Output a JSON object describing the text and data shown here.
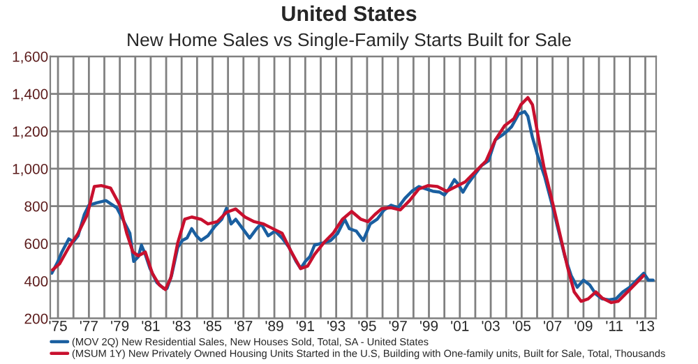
{
  "chart_data": {
    "type": "line",
    "title": "United States",
    "subtitle": "New Home Sales vs Single-Family Starts Built for Sale",
    "xlim": [
      1974.5,
      2013.7
    ],
    "xticks": [
      {
        "value": 1975,
        "label": "'75"
      },
      {
        "value": 1976,
        "label": null
      },
      {
        "value": 1977,
        "label": "'77"
      },
      {
        "value": 1978,
        "label": null
      },
      {
        "value": 1979,
        "label": "'79"
      },
      {
        "value": 1980,
        "label": null
      },
      {
        "value": 1981,
        "label": "'81"
      },
      {
        "value": 1982,
        "label": null
      },
      {
        "value": 1983,
        "label": "'83"
      },
      {
        "value": 1984,
        "label": null
      },
      {
        "value": 1985,
        "label": "'85"
      },
      {
        "value": 1986,
        "label": null
      },
      {
        "value": 1987,
        "label": "'87"
      },
      {
        "value": 1988,
        "label": null
      },
      {
        "value": 1989,
        "label": "'89"
      },
      {
        "value": 1990,
        "label": null
      },
      {
        "value": 1991,
        "label": "'91"
      },
      {
        "value": 1992,
        "label": null
      },
      {
        "value": 1993,
        "label": "'93"
      },
      {
        "value": 1994,
        "label": null
      },
      {
        "value": 1995,
        "label": "'95"
      },
      {
        "value": 1996,
        "label": null
      },
      {
        "value": 1997,
        "label": "'97"
      },
      {
        "value": 1998,
        "label": null
      },
      {
        "value": 1999,
        "label": "'99"
      },
      {
        "value": 2000,
        "label": null
      },
      {
        "value": 2001,
        "label": "'01"
      },
      {
        "value": 2002,
        "label": null
      },
      {
        "value": 2003,
        "label": "'03"
      },
      {
        "value": 2004,
        "label": null
      },
      {
        "value": 2005,
        "label": "'05"
      },
      {
        "value": 2006,
        "label": null
      },
      {
        "value": 2007,
        "label": "'07"
      },
      {
        "value": 2008,
        "label": null
      },
      {
        "value": 2009,
        "label": "'09"
      },
      {
        "value": 2010,
        "label": null
      },
      {
        "value": 2011,
        "label": "'11"
      },
      {
        "value": 2012,
        "label": null
      },
      {
        "value": 2013,
        "label": "'13"
      }
    ],
    "ylim": [
      200,
      1600
    ],
    "yticks": [
      {
        "value": 200,
        "label": "200"
      },
      {
        "value": 400,
        "label": "400"
      },
      {
        "value": 600,
        "label": "600"
      },
      {
        "value": 800,
        "label": "800"
      },
      {
        "value": 1000,
        "label": "1,000"
      },
      {
        "value": 1200,
        "label": "1,200"
      },
      {
        "value": 1400,
        "label": "1,400"
      },
      {
        "value": 1600,
        "label": "1,600"
      }
    ],
    "grid": true,
    "legend": "bottom",
    "marker": "none",
    "line_style": "solid",
    "series": [
      {
        "name": "(MOV 2Q) New Residential Sales, New Houses Sold, Total, SA - United States",
        "color": "#1a5fa0",
        "x": [
          1974.6,
          1975.0,
          1975.25,
          1975.7,
          1976.0,
          1976.3,
          1976.7,
          1977.0,
          1977.5,
          1978.1,
          1978.8,
          1979.35,
          1979.65,
          1979.9,
          1980.2,
          1980.4,
          1980.65,
          1980.95,
          1981.4,
          1981.85,
          1982.05,
          1982.35,
          1982.75,
          1983.05,
          1983.35,
          1983.65,
          1983.95,
          1984.25,
          1984.7,
          1985.15,
          1985.6,
          1985.9,
          1986.2,
          1986.5,
          1986.95,
          1987.4,
          1987.85,
          1988.15,
          1988.6,
          1989.05,
          1989.5,
          1989.95,
          1990.4,
          1990.7,
          1991.0,
          1991.3,
          1991.6,
          1992.2,
          1992.65,
          1993.1,
          1993.55,
          1993.85,
          1994.3,
          1994.75,
          1995.2,
          1995.65,
          1996.1,
          1996.55,
          1997.0,
          1997.45,
          1997.9,
          1998.35,
          1998.8,
          1999.25,
          1999.7,
          2000.0,
          2000.3,
          2000.65,
          2000.9,
          2001.2,
          2001.5,
          2001.95,
          2002.4,
          2002.85,
          2003.3,
          2003.75,
          2004.05,
          2004.35,
          2004.8,
          2005.2,
          2005.4,
          2005.7,
          2006.0,
          2006.5,
          2006.9,
          2007.35,
          2007.8,
          2008.2,
          2008.6,
          2009.0,
          2009.4,
          2009.8,
          2010.2,
          2010.65,
          2011.1,
          2011.55,
          2012.0,
          2012.45,
          2012.9,
          2013.2,
          2013.5
        ],
        "values": [
          442,
          505,
          555,
          625,
          610,
          642,
          755,
          805,
          818,
          830,
          792,
          705,
          655,
          505,
          530,
          592,
          542,
          468,
          392,
          360,
          360,
          430,
          580,
          617,
          630,
          680,
          642,
          617,
          642,
          692,
          730,
          788,
          705,
          730,
          680,
          630,
          680,
          705,
          642,
          667,
          630,
          580,
          505,
          467,
          505,
          530,
          592,
          605,
          617,
          655,
          730,
          680,
          667,
          617,
          705,
          730,
          780,
          805,
          792,
          842,
          880,
          905,
          892,
          880,
          875,
          860,
          892,
          942,
          917,
          875,
          917,
          967,
          1017,
          1042,
          1155,
          1180,
          1200,
          1225,
          1292,
          1305,
          1280,
          1167,
          1080,
          955,
          830,
          680,
          530,
          430,
          367,
          405,
          380,
          330,
          305,
          300,
          305,
          342,
          367,
          405,
          442,
          405,
          405
        ]
      },
      {
        "name": "(MSUM 1Y) New Privately Owned Housing Units Started in the U.S, Building with One-family units, Built for Sale, Total, Thousands",
        "color": "#c8102e",
        "x": [
          1974.65,
          1975.1,
          1975.7,
          1976.3,
          1976.9,
          1977.35,
          1977.8,
          1978.4,
          1979.0,
          1979.45,
          1979.85,
          1980.2,
          1980.65,
          1981.1,
          1981.55,
          1981.95,
          1982.3,
          1982.75,
          1983.2,
          1983.65,
          1984.25,
          1984.7,
          1985.3,
          1985.9,
          1986.5,
          1987.1,
          1987.7,
          1988.3,
          1988.9,
          1989.5,
          1990.1,
          1990.7,
          1991.15,
          1991.6,
          1992.2,
          1992.8,
          1993.4,
          1994.0,
          1994.6,
          1995.05,
          1995.5,
          1995.95,
          1996.55,
          1997.15,
          1997.75,
          1998.35,
          1998.95,
          1999.55,
          2000.15,
          2000.75,
          2001.35,
          2001.95,
          2002.7,
          2003.3,
          2003.9,
          2004.5,
          2004.95,
          2005.4,
          2005.7,
          2006.0,
          2006.45,
          2006.9,
          2007.5,
          2007.95,
          2008.4,
          2008.85,
          2009.3,
          2009.8,
          2010.2,
          2010.8,
          2011.25,
          2011.85,
          2012.45,
          2012.9
        ],
        "values": [
          460,
          492,
          580,
          655,
          755,
          905,
          910,
          897,
          805,
          655,
          555,
          535,
          555,
          442,
          380,
          355,
          417,
          605,
          730,
          742,
          730,
          705,
          717,
          767,
          785,
          742,
          717,
          705,
          680,
          655,
          555,
          467,
          480,
          542,
          605,
          655,
          730,
          772,
          730,
          717,
          755,
          787,
          792,
          780,
          830,
          892,
          910,
          905,
          880,
          905,
          930,
          980,
          1042,
          1155,
          1230,
          1267,
          1342,
          1380,
          1342,
          1205,
          1005,
          855,
          642,
          480,
          342,
          292,
          305,
          342,
          310,
          285,
          292,
          342,
          392,
          430
        ]
      }
    ]
  }
}
